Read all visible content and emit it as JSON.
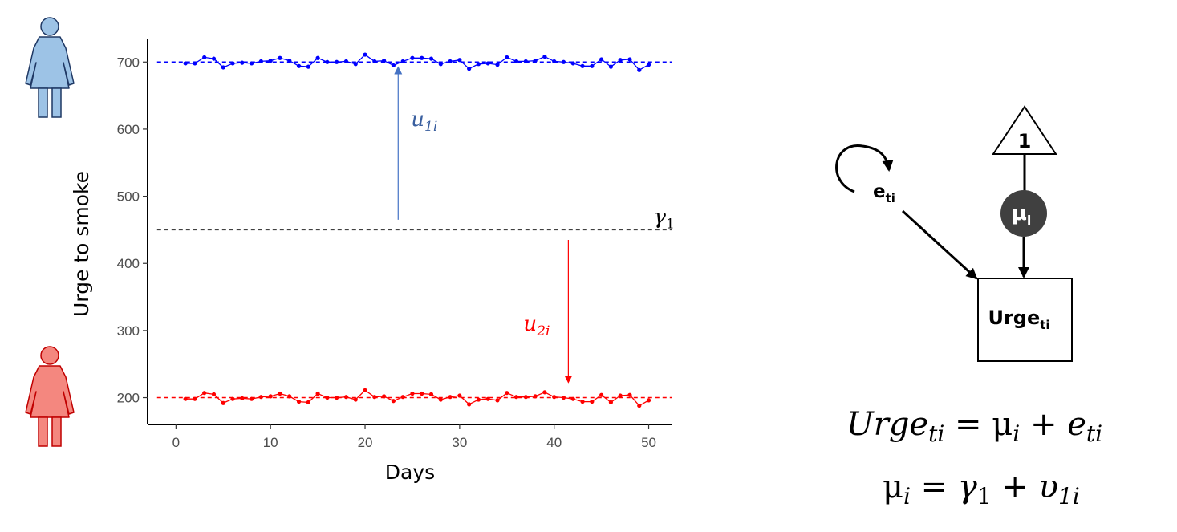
{
  "chart_data": {
    "type": "line",
    "xlabel": "Days",
    "ylabel": "Urge to smoke",
    "xlim": [
      -3,
      52.5
    ],
    "ylim": [
      160,
      735
    ],
    "x_ticks": [
      0,
      10,
      20,
      30,
      40,
      50
    ],
    "y_ticks": [
      200,
      300,
      400,
      500,
      600,
      700
    ],
    "grid": false,
    "series": [
      {
        "color": "#0000ff",
        "mean": 700,
        "x": [
          1,
          2,
          3,
          4,
          5,
          6,
          7,
          8,
          9,
          10,
          11,
          12,
          13,
          14,
          15,
          16,
          17,
          18,
          19,
          20,
          21,
          22,
          23,
          24,
          25,
          26,
          27,
          28,
          29,
          30,
          31,
          32,
          33,
          34,
          35,
          36,
          37,
          38,
          39,
          40,
          41,
          42,
          43,
          44,
          45,
          46,
          47,
          48,
          49,
          50
        ],
        "values": [
          698,
          698,
          707,
          705,
          692,
          698,
          699,
          698,
          701,
          702,
          706,
          702,
          694,
          693,
          706,
          700,
          700,
          701,
          697,
          711,
          701,
          702,
          695,
          701,
          706,
          706,
          705,
          697,
          701,
          703,
          690,
          697,
          698,
          696,
          707,
          701,
          701,
          702,
          708,
          701,
          700,
          698,
          694,
          694,
          704,
          693,
          703,
          704,
          688,
          696
        ]
      },
      {
        "color": "#ff0000",
        "mean": 200,
        "x": [
          1,
          2,
          3,
          4,
          5,
          6,
          7,
          8,
          9,
          10,
          11,
          12,
          13,
          14,
          15,
          16,
          17,
          18,
          19,
          20,
          21,
          22,
          23,
          24,
          25,
          26,
          27,
          28,
          29,
          30,
          31,
          32,
          33,
          34,
          35,
          36,
          37,
          38,
          39,
          40,
          41,
          42,
          43,
          44,
          45,
          46,
          47,
          48,
          49,
          50
        ],
        "values": [
          198,
          198,
          207,
          205,
          192,
          198,
          199,
          198,
          201,
          202,
          206,
          202,
          194,
          193,
          206,
          200,
          200,
          201,
          197,
          211,
          201,
          202,
          195,
          201,
          206,
          206,
          205,
          197,
          201,
          203,
          190,
          197,
          198,
          196,
          207,
          201,
          201,
          202,
          208,
          201,
          200,
          198,
          194,
          194,
          204,
          193,
          203,
          204,
          188,
          196
        ]
      }
    ],
    "reference_lines": [
      {
        "y": 700,
        "color": "#0000ff"
      },
      {
        "y": 450,
        "color": "#404040",
        "label": "γ",
        "label_sub": "1"
      },
      {
        "y": 200,
        "color": "#ff0000"
      }
    ],
    "annotations": [
      {
        "text": "u",
        "sub": "1i",
        "color": "#3a5f9f",
        "x": 23.5,
        "y_from": 465,
        "y_to": 695
      },
      {
        "text": "u",
        "sub": "2i",
        "color": "#ff0000",
        "x": 41.5,
        "y_from": 435,
        "y_to": 220
      }
    ]
  },
  "icons": {
    "female_blue": {
      "name": "female-person-icon",
      "color": "#9dc3e6",
      "stroke": "#1f3864"
    },
    "female_red": {
      "name": "female-person-icon",
      "color": "#f4877f",
      "stroke": "#c00000"
    }
  },
  "path_diagram": {
    "constant_label": "1",
    "mean_label": "μ",
    "mean_sub": "i",
    "error_label": "e",
    "error_sub": "ti",
    "observed_label": "Urge",
    "observed_sub": "ti"
  },
  "equations": {
    "eq1": {
      "lhs": "Urge",
      "lhs_sub": "ti",
      "eq": " = ",
      "mu": "μ",
      "mu_sub": "i",
      "plus": " + ",
      "e": "e",
      "e_sub": "ti"
    },
    "eq2": {
      "mu": "μ",
      "mu_sub": "i",
      "eq": " = ",
      "gamma": "γ",
      "gamma_sub": "1",
      "plus": " + ",
      "upsilon": "υ",
      "upsilon_sub": "1i"
    }
  }
}
